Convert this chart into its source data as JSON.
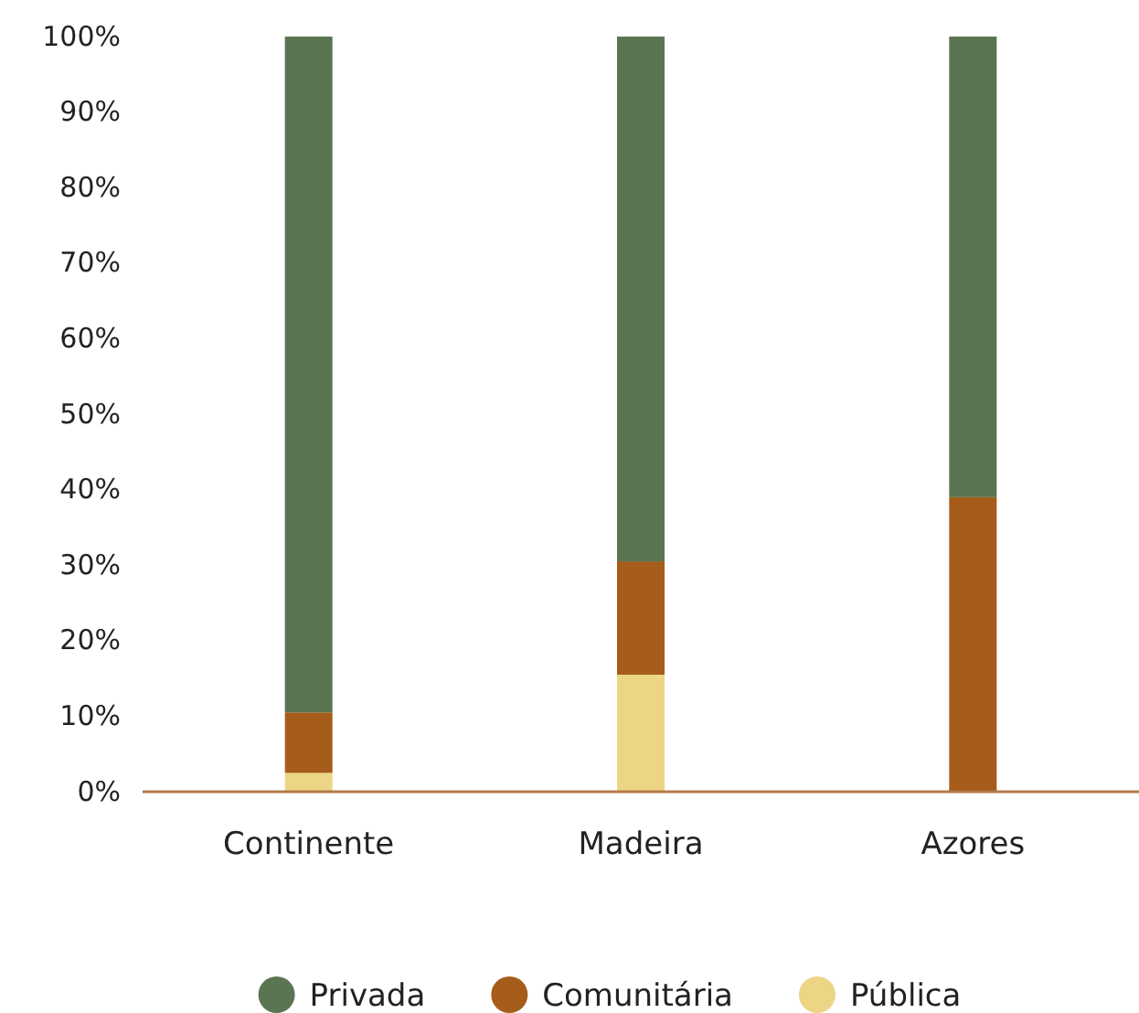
{
  "chart_data": {
    "type": "bar",
    "stacked": true,
    "categories": [
      "Continente",
      "Madeira",
      "Azores"
    ],
    "series": [
      {
        "name": "Pública",
        "color": "#ecd584",
        "values": [
          2.5,
          15.5,
          0
        ]
      },
      {
        "name": "Comunitária",
        "color": "#a65c1a",
        "values": [
          8,
          15,
          39
        ]
      },
      {
        "name": "Privada",
        "color": "#5b7553",
        "values": [
          89.5,
          69.5,
          61
        ]
      }
    ],
    "ylim": [
      0,
      100
    ],
    "yticks": [
      {
        "value": 0,
        "label": "0%"
      },
      {
        "value": 10,
        "label": "10%"
      },
      {
        "value": 20,
        "label": "20%"
      },
      {
        "value": 30,
        "label": "30%"
      },
      {
        "value": 40,
        "label": "40%"
      },
      {
        "value": 50,
        "label": "50%"
      },
      {
        "value": 60,
        "label": "60%"
      },
      {
        "value": 70,
        "label": "70%"
      },
      {
        "value": 80,
        "label": "80%"
      },
      {
        "value": 90,
        "label": "90%"
      },
      {
        "value": 100,
        "label": "100%"
      }
    ],
    "grid": false,
    "legend": "bottom"
  }
}
